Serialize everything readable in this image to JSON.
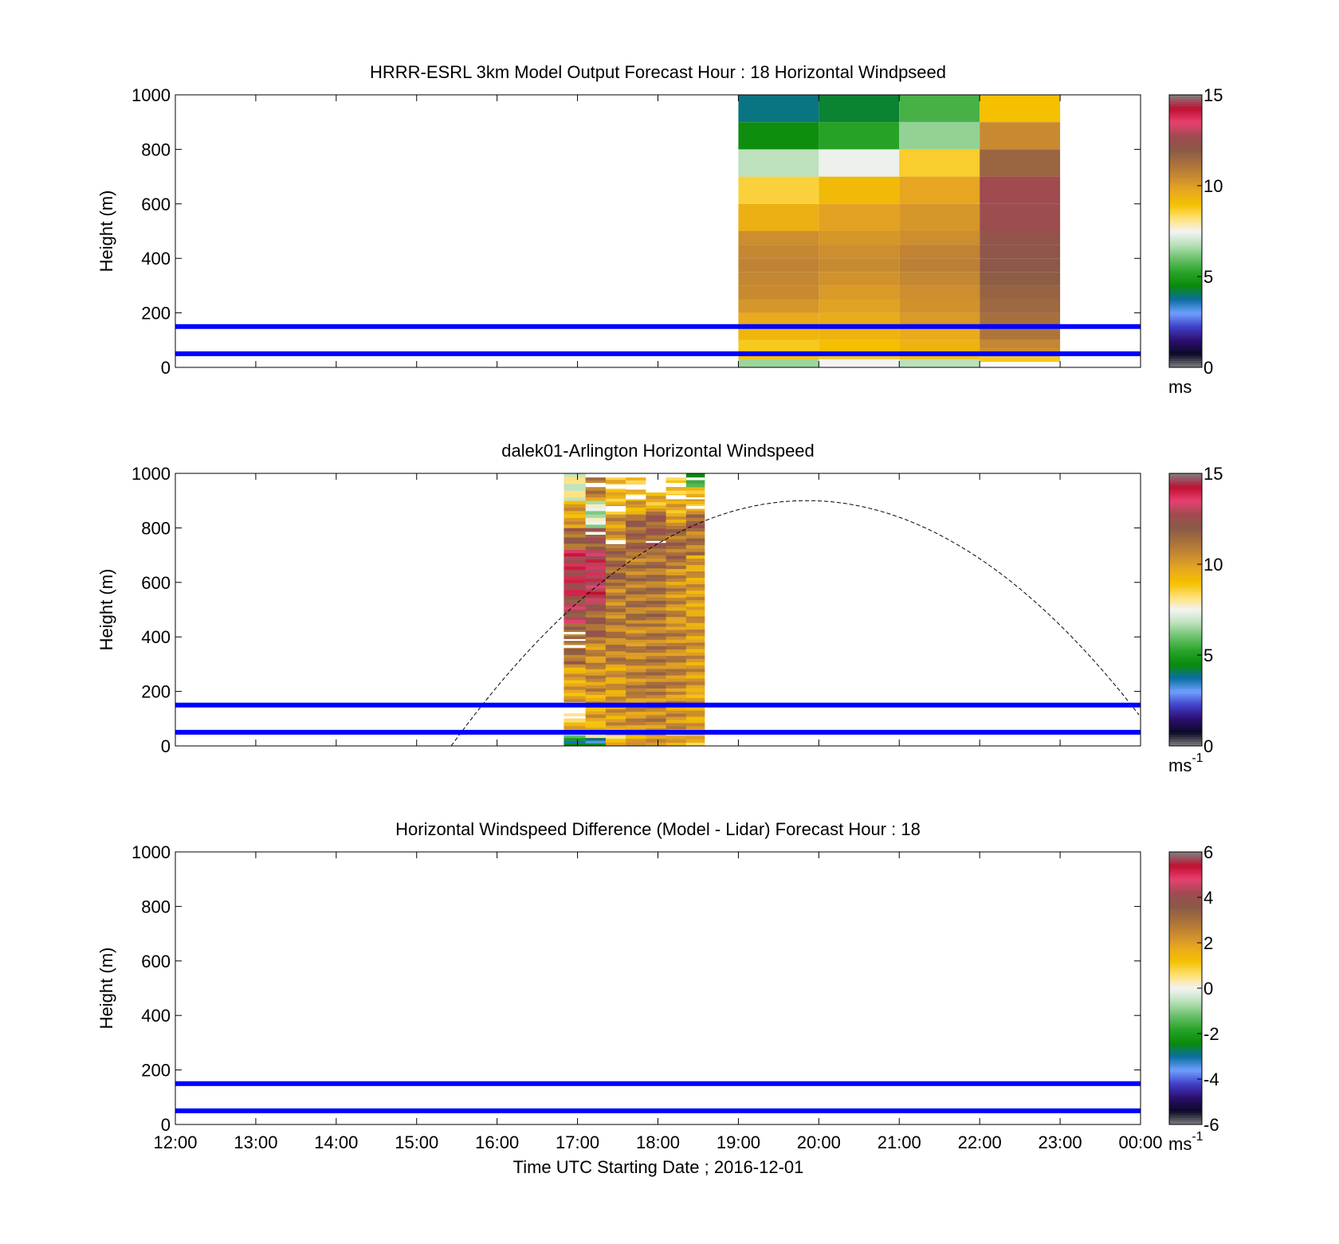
{
  "figure": {
    "xlabel": "Time UTC  Starting Date ; 2016-12-01"
  },
  "chart_data": [
    {
      "type": "heatmap",
      "title": "HRRR-ESRL 3km Model Output   Forecast Hour : 18 Horizontal Windpseed",
      "ylabel": "Height (m)",
      "xlabel": "",
      "x_start": "12:00",
      "x_end": "00:00",
      "xlim_hours": [
        12,
        24
      ],
      "ylim": [
        0,
        1000
      ],
      "yticks": [
        0,
        200,
        400,
        600,
        800,
        1000
      ],
      "xticks_hours": [
        12,
        13,
        14,
        15,
        16,
        17,
        18,
        19,
        20,
        21,
        22,
        23,
        24
      ],
      "xtick_labels_visible": false,
      "colorbar": {
        "label": "ms",
        "superscript": "",
        "ticks": [
          0,
          5,
          10,
          15
        ],
        "range": [
          0,
          15
        ]
      },
      "reference_lines": {
        "heights": [
          50,
          150
        ],
        "color": "#0000ff"
      },
      "columns": [
        {
          "t0": 19,
          "t1": 20,
          "cells": [
            {
              "z0": 0,
              "z1": 30,
              "v": 6.5
            },
            {
              "z0": 30,
              "z1": 60,
              "v": 9
            },
            {
              "z0": 60,
              "z1": 100,
              "v": 8.8
            },
            {
              "z0": 100,
              "z1": 150,
              "v": 9.3
            },
            {
              "z0": 150,
              "z1": 200,
              "v": 9.7
            },
            {
              "z0": 200,
              "z1": 250,
              "v": 10.2
            },
            {
              "z0": 250,
              "z1": 300,
              "v": 10.5
            },
            {
              "z0": 300,
              "z1": 350,
              "v": 10.6
            },
            {
              "z0": 350,
              "z1": 400,
              "v": 10.7
            },
            {
              "z0": 400,
              "z1": 450,
              "v": 10.6
            },
            {
              "z0": 450,
              "z1": 500,
              "v": 10.4
            },
            {
              "z0": 500,
              "z1": 600,
              "v": 9.5
            },
            {
              "z0": 600,
              "z1": 700,
              "v": 8.6
            },
            {
              "z0": 700,
              "z1": 800,
              "v": 6.8
            },
            {
              "z0": 800,
              "z1": 900,
              "v": 4.6
            },
            {
              "z0": 900,
              "z1": 1000,
              "v": 3.9
            }
          ]
        },
        {
          "t0": 20,
          "t1": 21,
          "cells": [
            {
              "z0": 0,
              "z1": 30,
              "v": 7.5
            },
            {
              "z0": 30,
              "z1": 60,
              "v": 8.8
            },
            {
              "z0": 60,
              "z1": 100,
              "v": 9
            },
            {
              "z0": 100,
              "z1": 150,
              "v": 9.4
            },
            {
              "z0": 150,
              "z1": 200,
              "v": 9.6
            },
            {
              "z0": 200,
              "z1": 250,
              "v": 9.9
            },
            {
              "z0": 250,
              "z1": 300,
              "v": 10.1
            },
            {
              "z0": 300,
              "z1": 350,
              "v": 10.3
            },
            {
              "z0": 350,
              "z1": 400,
              "v": 10.5
            },
            {
              "z0": 400,
              "z1": 450,
              "v": 10.4
            },
            {
              "z0": 450,
              "z1": 500,
              "v": 10.2
            },
            {
              "z0": 500,
              "z1": 600,
              "v": 9.9
            },
            {
              "z0": 600,
              "z1": 700,
              "v": 9.2
            },
            {
              "z0": 700,
              "z1": 800,
              "v": 7.4
            },
            {
              "z0": 800,
              "z1": 900,
              "v": 5.2
            },
            {
              "z0": 900,
              "z1": 1000,
              "v": 4.3
            }
          ]
        },
        {
          "t0": 21,
          "t1": 22,
          "cells": [
            {
              "z0": 0,
              "z1": 30,
              "v": 6.8
            },
            {
              "z0": 30,
              "z1": 60,
              "v": 9
            },
            {
              "z0": 60,
              "z1": 100,
              "v": 9.4
            },
            {
              "z0": 100,
              "z1": 150,
              "v": 9.7
            },
            {
              "z0": 150,
              "z1": 200,
              "v": 10.1
            },
            {
              "z0": 200,
              "z1": 250,
              "v": 10.3
            },
            {
              "z0": 250,
              "z1": 300,
              "v": 10.4
            },
            {
              "z0": 300,
              "z1": 350,
              "v": 10.6
            },
            {
              "z0": 350,
              "z1": 400,
              "v": 10.8
            },
            {
              "z0": 400,
              "z1": 450,
              "v": 10.7
            },
            {
              "z0": 450,
              "z1": 500,
              "v": 10.4
            },
            {
              "z0": 500,
              "z1": 600,
              "v": 10.2
            },
            {
              "z0": 600,
              "z1": 700,
              "v": 9.8
            },
            {
              "z0": 700,
              "z1": 800,
              "v": 8.7
            },
            {
              "z0": 800,
              "z1": 900,
              "v": 6.4
            },
            {
              "z0": 900,
              "z1": 1000,
              "v": 5.6
            }
          ]
        },
        {
          "t0": 22,
          "t1": 23,
          "cells": [
            {
              "z0": 20,
              "z1": 40,
              "v": 8.8
            },
            {
              "z0": 40,
              "z1": 70,
              "v": 10.4
            },
            {
              "z0": 70,
              "z1": 100,
              "v": 10.6
            },
            {
              "z0": 100,
              "z1": 150,
              "v": 11.1
            },
            {
              "z0": 150,
              "z1": 200,
              "v": 11.3
            },
            {
              "z0": 200,
              "z1": 250,
              "v": 11.5
            },
            {
              "z0": 250,
              "z1": 300,
              "v": 11.7
            },
            {
              "z0": 300,
              "z1": 350,
              "v": 11.9
            },
            {
              "z0": 350,
              "z1": 400,
              "v": 12.1
            },
            {
              "z0": 400,
              "z1": 450,
              "v": 12.2
            },
            {
              "z0": 450,
              "z1": 500,
              "v": 12.3
            },
            {
              "z0": 500,
              "z1": 600,
              "v": 12.6
            },
            {
              "z0": 600,
              "z1": 700,
              "v": 12.7
            },
            {
              "z0": 700,
              "z1": 800,
              "v": 11.6
            },
            {
              "z0": 800,
              "z1": 900,
              "v": 10.5
            },
            {
              "z0": 900,
              "z1": 1000,
              "v": 9
            }
          ]
        }
      ]
    },
    {
      "type": "heatmap",
      "title": "dalek01-Arlington  Horizontal Windspeed",
      "ylabel": "Height (m)",
      "xlabel": "",
      "x_start": "12:00",
      "x_end": "00:00",
      "xlim_hours": [
        12,
        24
      ],
      "ylim": [
        0,
        1000
      ],
      "yticks": [
        0,
        200,
        400,
        600,
        800,
        1000
      ],
      "xticks_hours": [
        12,
        13,
        14,
        15,
        16,
        17,
        18,
        19,
        20,
        21,
        22,
        23,
        24
      ],
      "xtick_labels_visible": false,
      "colorbar": {
        "label": "ms",
        "superscript": "-1",
        "ticks": [
          0,
          5,
          10,
          15
        ],
        "range": [
          0,
          15
        ]
      },
      "reference_lines": {
        "heights": [
          50,
          150
        ],
        "color": "#0000ff"
      },
      "lidar_columns": [
        {
          "t0": 16.83,
          "t1": 17.1,
          "profile": [
            {
              "z0": 0,
              "z1": 30,
              "v": 4.5
            },
            {
              "z0": 30,
              "z1": 60,
              "v": 6.5
            },
            {
              "z0": 60,
              "z1": 100,
              "v": 9.2
            },
            {
              "z0": 100,
              "z1": 160,
              "v": 8.9
            },
            {
              "z0": 160,
              "z1": 300,
              "v": 9.8
            },
            {
              "z0": 300,
              "z1": 450,
              "v": 11.3
            },
            {
              "z0": 450,
              "z1": 550,
              "v": 12.6
            },
            {
              "z0": 550,
              "z1": 720,
              "v": 13.3
            },
            {
              "z0": 720,
              "z1": 800,
              "v": 11.5
            },
            {
              "z0": 800,
              "z1": 900,
              "v": 9.8
            },
            {
              "z0": 900,
              "z1": 1000,
              "v": 7.5
            }
          ],
          "gaps": [
            [
              100,
              110
            ],
            [
              120,
              160
            ],
            [
              360,
              370
            ],
            [
              385,
              392
            ],
            [
              410,
              418
            ]
          ]
        },
        {
          "t0": 17.1,
          "t1": 17.35,
          "profile": [
            {
              "z0": 0,
              "z1": 30,
              "v": 4
            },
            {
              "z0": 30,
              "z1": 80,
              "v": 9
            },
            {
              "z0": 80,
              "z1": 200,
              "v": 9.8
            },
            {
              "z0": 200,
              "z1": 400,
              "v": 10.4
            },
            {
              "z0": 400,
              "z1": 520,
              "v": 11.7
            },
            {
              "z0": 520,
              "z1": 720,
              "v": 13.8
            },
            {
              "z0": 720,
              "z1": 800,
              "v": 12
            },
            {
              "z0": 800,
              "z1": 900,
              "v": 7
            },
            {
              "z0": 900,
              "z1": 1000,
              "v": 10.6
            }
          ],
          "gaps": [
            [
              775,
              785
            ],
            [
              950,
              965
            ],
            [
              985,
              1000
            ]
          ]
        },
        {
          "t0": 17.35,
          "t1": 17.6,
          "profile": [
            {
              "z0": 0,
              "z1": 40,
              "v": 9
            },
            {
              "z0": 40,
              "z1": 300,
              "v": 10
            },
            {
              "z0": 300,
              "z1": 600,
              "v": 10.8
            },
            {
              "z0": 600,
              "z1": 750,
              "v": 11.5
            },
            {
              "z0": 750,
              "z1": 850,
              "v": 10.2
            },
            {
              "z0": 850,
              "z1": 920,
              "v": 9.4
            },
            {
              "z0": 920,
              "z1": 1000,
              "v": 9
            }
          ],
          "gaps": [
            [
              740,
              755
            ],
            [
              860,
              880
            ],
            [
              945,
              960
            ],
            [
              985,
              1000
            ]
          ]
        },
        {
          "t0": 17.6,
          "t1": 17.85,
          "profile": [
            {
              "z0": 0,
              "z1": 40,
              "v": 9.6
            },
            {
              "z0": 40,
              "z1": 200,
              "v": 10.4
            },
            {
              "z0": 200,
              "z1": 450,
              "v": 10.6
            },
            {
              "z0": 450,
              "z1": 700,
              "v": 11
            },
            {
              "z0": 700,
              "z1": 850,
              "v": 11.6
            },
            {
              "z0": 850,
              "z1": 900,
              "v": 9.8
            },
            {
              "z0": 900,
              "z1": 1000,
              "v": 9.3
            }
          ],
          "gaps": [
            [
              905,
              920
            ],
            [
              940,
              960
            ],
            [
              985,
              1000
            ]
          ]
        },
        {
          "t0": 17.85,
          "t1": 18.1,
          "profile": [
            {
              "z0": 0,
              "z1": 40,
              "v": 9.8
            },
            {
              "z0": 40,
              "z1": 200,
              "v": 10.6
            },
            {
              "z0": 200,
              "z1": 450,
              "v": 10.9
            },
            {
              "z0": 450,
              "z1": 700,
              "v": 11.1
            },
            {
              "z0": 700,
              "z1": 860,
              "v": 11.8
            },
            {
              "z0": 860,
              "z1": 930,
              "v": 9.4
            }
          ],
          "gaps": [
            [
              745,
              752
            ],
            [
              930,
              1000
            ]
          ]
        },
        {
          "t0": 18.1,
          "t1": 18.35,
          "profile": [
            {
              "z0": 0,
              "z1": 50,
              "v": 9.5
            },
            {
              "z0": 50,
              "z1": 200,
              "v": 10.3
            },
            {
              "z0": 200,
              "z1": 450,
              "v": 10.6
            },
            {
              "z0": 450,
              "z1": 650,
              "v": 10.4
            },
            {
              "z0": 650,
              "z1": 820,
              "v": 11.3
            },
            {
              "z0": 820,
              "z1": 900,
              "v": 9.6
            },
            {
              "z0": 900,
              "z1": 1000,
              "v": 9.2
            }
          ],
          "gaps": [
            [
              905,
              920
            ],
            [
              950,
              965
            ],
            [
              985,
              1000
            ]
          ]
        },
        {
          "t0": 18.35,
          "t1": 18.58,
          "profile": [
            {
              "z0": 0,
              "z1": 50,
              "v": 9.2
            },
            {
              "z0": 50,
              "z1": 200,
              "v": 9.8
            },
            {
              "z0": 200,
              "z1": 500,
              "v": 10.1
            },
            {
              "z0": 500,
              "z1": 700,
              "v": 10
            },
            {
              "z0": 700,
              "z1": 800,
              "v": 11
            },
            {
              "z0": 800,
              "z1": 850,
              "v": 11.8
            },
            {
              "z0": 850,
              "z1": 950,
              "v": 9.5
            },
            {
              "z0": 950,
              "z1": 1000,
              "v": 5
            }
          ],
          "gaps": [
            [
              870,
              880
            ],
            [
              905,
              912
            ],
            [
              975,
              985
            ]
          ]
        }
      ],
      "sun_elevation_curve": {
        "style": "dashed",
        "color": "#000000",
        "t_start": 15.43,
        "t_peak": 19.85,
        "peak_height": 900,
        "t_end": 24
      }
    },
    {
      "type": "heatmap",
      "title": "Horizontal Windspeed Difference (Model - Lidar) Forecast Hour : 18",
      "ylabel": "Height (m)",
      "xlabel": "Time UTC  Starting Date ; 2016-12-01",
      "ylim": [
        0,
        1000
      ],
      "yticks": [
        0,
        200,
        400,
        600,
        800,
        1000
      ],
      "xticks_hours": [
        12,
        13,
        14,
        15,
        16,
        17,
        18,
        19,
        20,
        21,
        22,
        23,
        24
      ],
      "xtick_labels": [
        "12:00",
        "13:00",
        "14:00",
        "15:00",
        "16:00",
        "17:00",
        "18:00",
        "19:00",
        "20:00",
        "21:00",
        "22:00",
        "23:00",
        "00:00"
      ],
      "colorbar": {
        "label": "ms",
        "superscript": "-1",
        "ticks": [
          -6,
          -4,
          -2,
          0,
          2,
          4,
          6
        ],
        "range": [
          -6,
          6
        ]
      },
      "reference_lines": {
        "heights": [
          50,
          150
        ],
        "color": "#0000ff"
      },
      "cells": []
    }
  ],
  "colormap": {
    "stops": [
      "#808080",
      "#0a0a26",
      "#2d0e70",
      "#4040c8",
      "#6fa0ff",
      "#0a6ea0",
      "#0a8a0a",
      "#28a428",
      "#6ac06a",
      "#b8e0b8",
      "#f4f4f4",
      "#ffe070",
      "#f4c000",
      "#e8a820",
      "#c88a30",
      "#a8703c",
      "#8a5a48",
      "#a04a50",
      "#e84070",
      "#c01030",
      "#808080"
    ]
  }
}
